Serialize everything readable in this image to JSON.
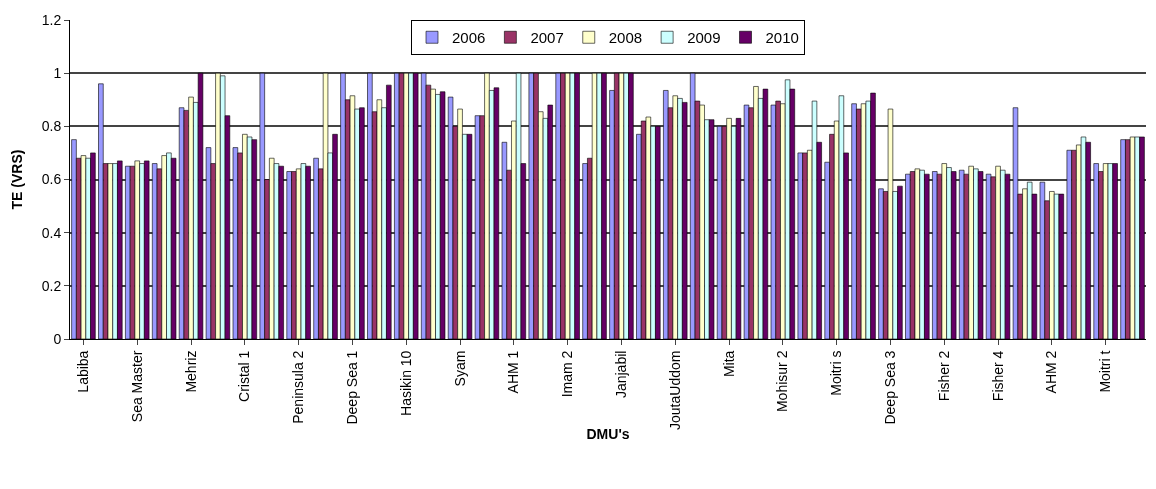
{
  "chart_data": {
    "type": "bar",
    "xlabel": "DMU's",
    "ylabel": "TE (VRS)",
    "categories": [
      "Labiba",
      null,
      "Sea Master",
      null,
      "Mehriz",
      null,
      "Cristal 1",
      null,
      "Peninsula 2",
      null,
      "Deep Sea 1",
      null,
      "Hasikin 10",
      null,
      "Syam",
      null,
      "AHM 1",
      null,
      "Imam 2",
      null,
      "Janjabil",
      null,
      "JoutaUddom",
      null,
      "Mita",
      null,
      "Mohisur 2",
      null,
      "Moitri s",
      null,
      "Deep Sea 3",
      null,
      "Fisher 2",
      null,
      "Fisher 4",
      null,
      "AHM 2",
      null,
      "Moitri t",
      null
    ],
    "series": [
      {
        "name": "2006",
        "color": "#9999ff",
        "values": [
          0.75,
          0.96,
          0.65,
          0.66,
          0.87,
          0.72,
          0.72,
          1.0,
          0.63,
          0.68,
          1.0,
          1.0,
          1.0,
          1.0,
          0.91,
          0.84,
          0.74,
          1.0,
          1.0,
          0.66,
          0.935,
          0.77,
          0.935,
          1.0,
          0.8,
          0.88,
          0.88,
          0.7,
          0.665,
          0.885,
          0.565,
          0.62,
          0.63,
          0.635,
          0.62,
          0.87,
          0.59,
          0.71,
          0.66,
          0.75
        ]
      },
      {
        "name": "2007",
        "color": "#993366",
        "values": [
          0.68,
          0.66,
          0.65,
          0.64,
          0.86,
          0.66,
          0.7,
          0.6,
          0.63,
          0.64,
          0.9,
          0.855,
          1.0,
          0.955,
          0.8,
          0.84,
          0.635,
          1.0,
          1.0,
          0.68,
          1.0,
          0.82,
          0.87,
          0.895,
          0.8,
          0.87,
          0.895,
          0.7,
          0.77,
          0.865,
          0.555,
          0.63,
          0.62,
          0.62,
          0.61,
          0.545,
          0.52,
          0.71,
          0.63,
          0.75
        ]
      },
      {
        "name": "2008",
        "color": "#ffffcc",
        "values": [
          0.69,
          0.66,
          0.67,
          0.69,
          0.91,
          1.0,
          0.77,
          0.68,
          0.64,
          1.0,
          0.915,
          0.9,
          1.0,
          0.94,
          0.865,
          1.0,
          0.82,
          0.855,
          1.0,
          1.0,
          1.0,
          0.835,
          0.915,
          0.88,
          0.83,
          0.95,
          0.885,
          0.71,
          0.82,
          0.885,
          0.865,
          0.64,
          0.66,
          0.65,
          0.65,
          0.565,
          0.555,
          0.73,
          0.66,
          0.76
        ]
      },
      {
        "name": "2009",
        "color": "#ccffff",
        "values": [
          0.68,
          0.66,
          0.66,
          0.7,
          0.89,
          0.99,
          0.76,
          0.66,
          0.66,
          0.7,
          0.865,
          0.87,
          1.0,
          0.92,
          0.77,
          0.935,
          1.0,
          0.83,
          1.0,
          1.0,
          1.0,
          0.8,
          0.905,
          0.825,
          0.8,
          0.905,
          0.975,
          0.895,
          0.915,
          0.895,
          0.555,
          0.635,
          0.645,
          0.64,
          0.635,
          0.59,
          0.545,
          0.76,
          0.66,
          0.76
        ]
      },
      {
        "name": "2010",
        "color": "#660066",
        "values": [
          0.7,
          0.67,
          0.67,
          0.68,
          1.0,
          0.84,
          0.75,
          0.65,
          0.65,
          0.77,
          0.87,
          0.955,
          1.0,
          0.93,
          0.77,
          0.945,
          0.66,
          0.88,
          1.0,
          1.0,
          1.0,
          0.8,
          0.89,
          0.825,
          0.83,
          0.94,
          0.94,
          0.74,
          0.7,
          0.925,
          0.575,
          0.62,
          0.63,
          0.63,
          0.62,
          0.545,
          0.545,
          0.74,
          0.66,
          0.76
        ]
      }
    ],
    "ylim": [
      0,
      1.2
    ],
    "yticks": [
      0,
      0.2,
      0.4,
      0.6,
      0.8,
      1,
      1.2
    ],
    "grid": "y",
    "legend": "top"
  }
}
